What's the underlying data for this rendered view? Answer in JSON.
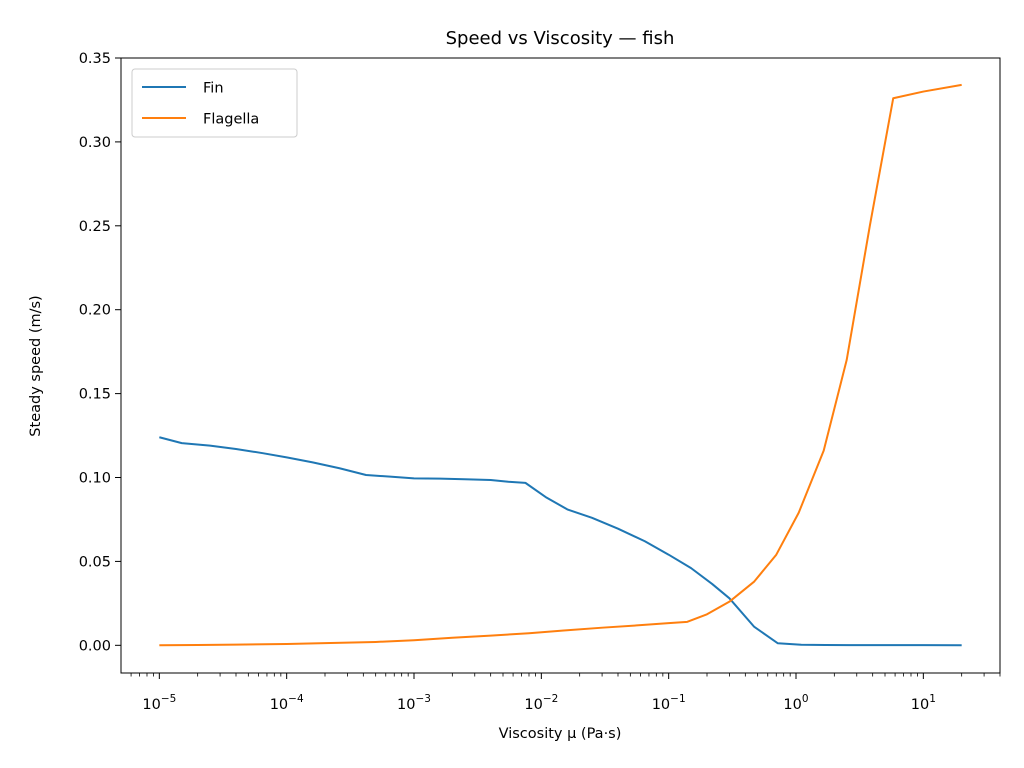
{
  "chart_data": {
    "type": "line",
    "title": "Speed vs Viscosity — fish",
    "xlabel": "Viscosity μ (Pa·s)",
    "ylabel": "Steady speed (m/s)",
    "xscale": "log",
    "xlim": [
      5e-06,
      40
    ],
    "ylim": [
      -0.0165,
      0.35
    ],
    "grid": false,
    "legend_position": "top-left",
    "x_ticks": [
      {
        "value": 1e-05,
        "base": "10",
        "exp": "−5"
      },
      {
        "value": 0.0001,
        "base": "10",
        "exp": "−4"
      },
      {
        "value": 0.001,
        "base": "10",
        "exp": "−3"
      },
      {
        "value": 0.01,
        "base": "10",
        "exp": "−2"
      },
      {
        "value": 0.1,
        "base": "10",
        "exp": "−1"
      },
      {
        "value": 1,
        "base": "10",
        "exp": "0"
      },
      {
        "value": 10,
        "base": "10",
        "exp": "1"
      }
    ],
    "y_ticks": [
      {
        "value": 0.0,
        "label": "0.00"
      },
      {
        "value": 0.05,
        "label": "0.05"
      },
      {
        "value": 0.1,
        "label": "0.10"
      },
      {
        "value": 0.15,
        "label": "0.15"
      },
      {
        "value": 0.2,
        "label": "0.20"
      },
      {
        "value": 0.25,
        "label": "0.25"
      },
      {
        "value": 0.3,
        "label": "0.30"
      },
      {
        "value": 0.35,
        "label": "0.35"
      }
    ],
    "series": [
      {
        "name": "Fin",
        "color": "#1f77b4",
        "x": [
          1e-05,
          1.5e-05,
          2.5e-05,
          4e-05,
          6.5e-05,
          0.0001,
          0.00016,
          0.00026,
          0.00042,
          0.00065,
          0.001,
          0.0016,
          0.0025,
          0.004,
          0.0055,
          0.0075,
          0.011,
          0.016,
          0.025,
          0.04,
          0.065,
          0.1,
          0.15,
          0.22,
          0.3,
          0.47,
          0.72,
          1.1,
          1.7,
          2.6,
          4,
          6,
          10,
          20
        ],
        "y": [
          0.124,
          0.1205,
          0.119,
          0.117,
          0.1145,
          0.112,
          0.109,
          0.1055,
          0.1015,
          0.1005,
          0.0995,
          0.0993,
          0.099,
          0.0985,
          0.0975,
          0.0968,
          0.088,
          0.081,
          0.076,
          0.0695,
          0.062,
          0.054,
          0.046,
          0.0365,
          0.028,
          0.011,
          0.0012,
          0.0003,
          0.0002,
          0.0001,
          0.0001,
          0.0001,
          0.0001,
          0.0
        ]
      },
      {
        "name": "Flagella",
        "color": "#ff7f0e",
        "x": [
          1e-05,
          2e-05,
          4e-05,
          0.0001,
          0.0002,
          0.0005,
          0.001,
          0.002,
          0.004,
          0.008,
          0.015,
          0.03,
          0.06,
          0.1,
          0.14,
          0.2,
          0.3,
          0.47,
          0.7,
          1.05,
          1.65,
          2.5,
          3.8,
          5.8,
          10,
          20
        ],
        "y": [
          0.0,
          0.0002,
          0.0004,
          0.0008,
          0.0013,
          0.002,
          0.003,
          0.0045,
          0.0058,
          0.0072,
          0.0088,
          0.0105,
          0.012,
          0.0132,
          0.014,
          0.0185,
          0.026,
          0.038,
          0.054,
          0.079,
          0.116,
          0.17,
          0.25,
          0.326,
          0.33,
          0.334
        ]
      }
    ]
  }
}
